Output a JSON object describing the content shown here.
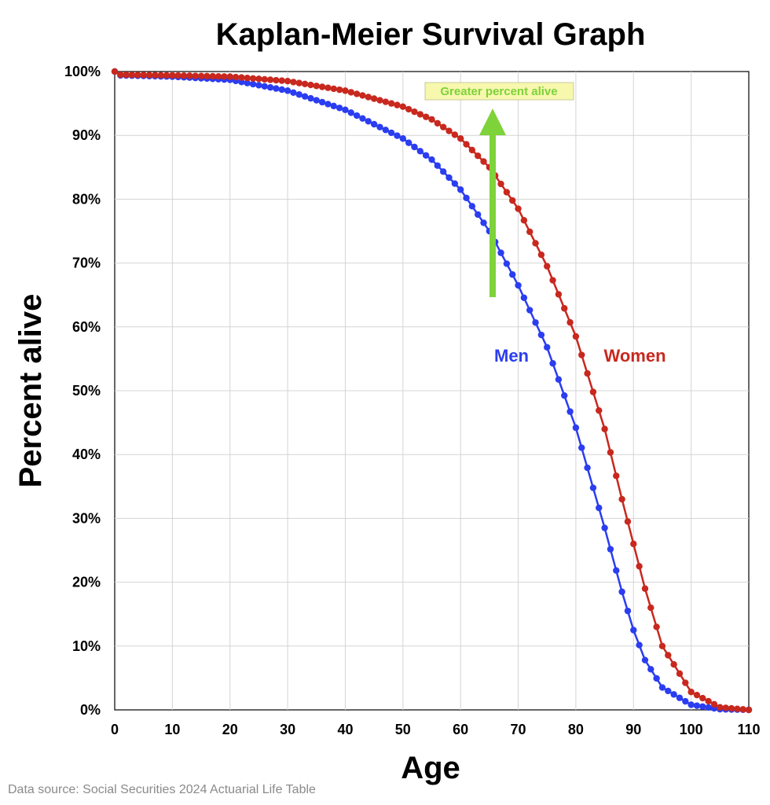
{
  "chart_data": {
    "type": "line",
    "title": "Kaplan-Meier Survival Graph",
    "xlabel": "Age",
    "ylabel": "Percent alive",
    "xlim": [
      0,
      110
    ],
    "ylim": [
      0,
      100
    ],
    "x_ticks": [
      "0",
      "10",
      "20",
      "30",
      "40",
      "50",
      "60",
      "70",
      "80",
      "90",
      "100",
      "110"
    ],
    "y_ticks": [
      "0%",
      "10%",
      "20%",
      "30%",
      "40%",
      "50%",
      "60%",
      "70%",
      "80%",
      "90%",
      "100%"
    ],
    "grid": true,
    "series": [
      {
        "name": "Men",
        "color": "#2b3df0",
        "anchors": [
          [
            0,
            100
          ],
          [
            1,
            99.4
          ],
          [
            10,
            99.2
          ],
          [
            20,
            98.7
          ],
          [
            30,
            97
          ],
          [
            40,
            94
          ],
          [
            50,
            89.5
          ],
          [
            55,
            86.2
          ],
          [
            60,
            81.5
          ],
          [
            65,
            75
          ],
          [
            70,
            66.5
          ],
          [
            75,
            56.8
          ],
          [
            80,
            44.2
          ],
          [
            85,
            28.5
          ],
          [
            88,
            18.5
          ],
          [
            90,
            12.5
          ],
          [
            92,
            7.8
          ],
          [
            95,
            3.5
          ],
          [
            100,
            0.8
          ],
          [
            105,
            0.1
          ],
          [
            110,
            0
          ]
        ]
      },
      {
        "name": "Women",
        "color": "#c8281e",
        "anchors": [
          [
            0,
            100
          ],
          [
            1,
            99.5
          ],
          [
            10,
            99.4
          ],
          [
            20,
            99.2
          ],
          [
            30,
            98.5
          ],
          [
            40,
            97
          ],
          [
            50,
            94.5
          ],
          [
            55,
            92.5
          ],
          [
            60,
            89.5
          ],
          [
            65,
            85
          ],
          [
            70,
            78.5
          ],
          [
            75,
            69.5
          ],
          [
            80,
            58.5
          ],
          [
            85,
            44
          ],
          [
            88,
            33
          ],
          [
            90,
            26
          ],
          [
            92,
            19
          ],
          [
            95,
            10
          ],
          [
            100,
            2.8
          ],
          [
            105,
            0.4
          ],
          [
            110,
            0
          ]
        ]
      }
    ],
    "annotation": {
      "text": "Greater percent alive",
      "arrow_color": "#7ed23a",
      "box_fill": "#f7f7ad"
    },
    "source_note": "Data source: Social Securities 2024 Actuarial Life Table"
  }
}
